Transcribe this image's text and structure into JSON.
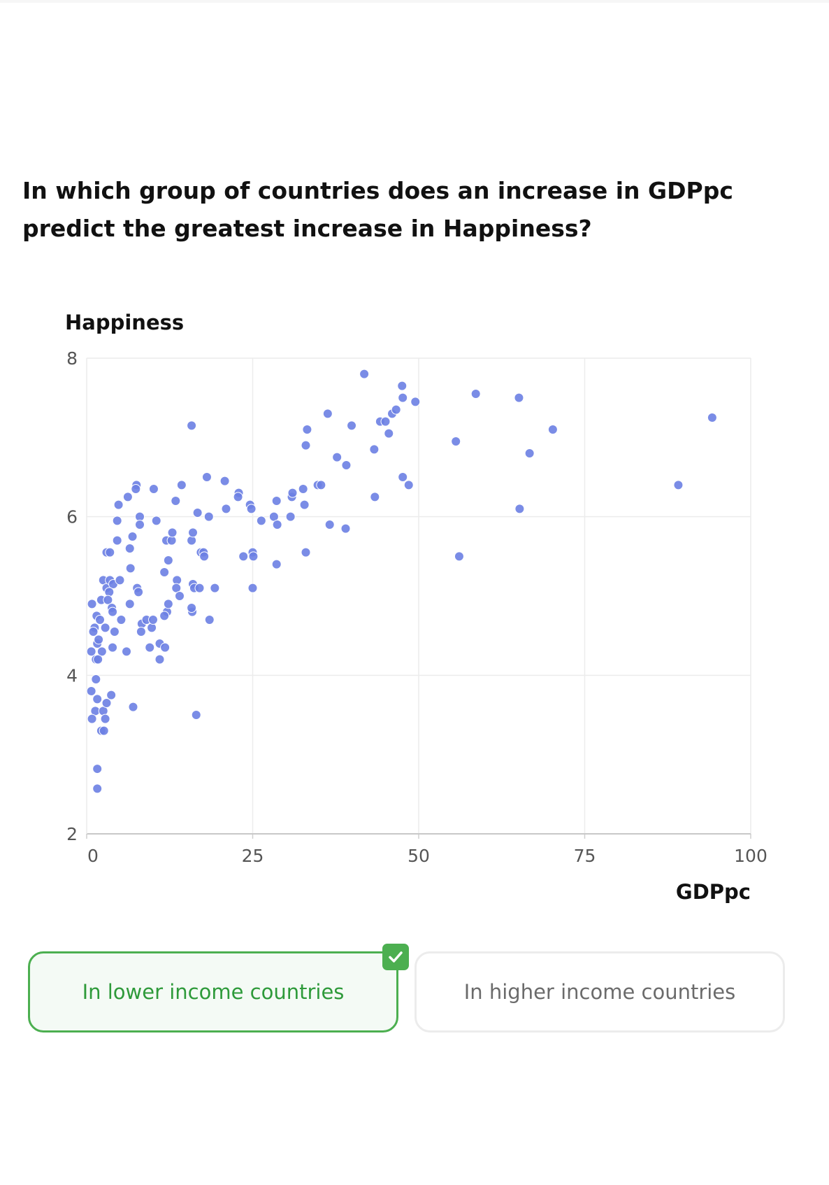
{
  "question": "In which group of countries does an increase in GDPpc predict the greatest increase in Happiness?",
  "options": [
    {
      "label": "In lower income countries",
      "state": "correct"
    },
    {
      "label": "In higher income countries",
      "state": "unselected"
    }
  ],
  "colors": {
    "points": "#6b7fe3",
    "correct": "#4caf50",
    "grid": "#ececec"
  },
  "icons": {
    "correct_badge": "checkmark-icon"
  },
  "chart_data": {
    "type": "scatter",
    "xlabel": "GDPpc",
    "ylabel": "Happiness",
    "xlim": [
      0,
      100
    ],
    "ylim": [
      2,
      8
    ],
    "xticks": [
      "0",
      "25",
      "50",
      "75",
      "100"
    ],
    "yticks": [
      "2",
      "4",
      "6",
      "8"
    ],
    "grid": true,
    "points": [
      [
        0.8,
        4.9
      ],
      [
        1.2,
        4.6
      ],
      [
        1.5,
        4.75
      ],
      [
        1.0,
        4.55
      ],
      [
        0.7,
        4.3
      ],
      [
        1.6,
        4.4
      ],
      [
        2.0,
        4.7
      ],
      [
        2.2,
        4.95
      ],
      [
        2.5,
        5.2
      ],
      [
        3.0,
        5.1
      ],
      [
        3.5,
        5.2
      ],
      [
        4.0,
        5.15
      ],
      [
        3.4,
        5.05
      ],
      [
        3.2,
        4.95
      ],
      [
        3.8,
        4.85
      ],
      [
        3.9,
        4.8
      ],
      [
        2.8,
        4.6
      ],
      [
        4.2,
        4.55
      ],
      [
        5.2,
        4.7
      ],
      [
        1.8,
        4.45
      ],
      [
        2.3,
        4.3
      ],
      [
        1.4,
        4.2
      ],
      [
        1.7,
        4.2
      ],
      [
        3.9,
        4.35
      ],
      [
        6.0,
        4.3
      ],
      [
        1.4,
        3.95
      ],
      [
        1.6,
        3.7
      ],
      [
        0.7,
        3.8
      ],
      [
        1.3,
        3.55
      ],
      [
        0.8,
        3.45
      ],
      [
        2.5,
        3.55
      ],
      [
        3.0,
        3.65
      ],
      [
        3.7,
        3.75
      ],
      [
        2.8,
        3.45
      ],
      [
        2.2,
        3.3
      ],
      [
        2.6,
        3.3
      ],
      [
        1.6,
        2.82
      ],
      [
        1.6,
        2.57
      ],
      [
        3.0,
        5.55
      ],
      [
        3.5,
        5.55
      ],
      [
        4.6,
        5.7
      ],
      [
        5.0,
        5.2
      ],
      [
        4.6,
        5.95
      ],
      [
        4.8,
        6.15
      ],
      [
        6.2,
        6.25
      ],
      [
        7.5,
        6.4
      ],
      [
        7.4,
        6.35
      ],
      [
        6.5,
        5.6
      ],
      [
        6.9,
        5.75
      ],
      [
        8.0,
        6.0
      ],
      [
        8.0,
        5.9
      ],
      [
        6.6,
        5.35
      ],
      [
        7.6,
        5.1
      ],
      [
        7.8,
        5.05
      ],
      [
        6.5,
        4.9
      ],
      [
        8.3,
        4.65
      ],
      [
        8.2,
        4.55
      ],
      [
        9.0,
        4.7
      ],
      [
        9.8,
        4.6
      ],
      [
        10.0,
        4.7
      ],
      [
        9.5,
        4.35
      ],
      [
        11.0,
        4.4
      ],
      [
        11.0,
        4.2
      ],
      [
        11.8,
        4.35
      ],
      [
        7.0,
        3.6
      ],
      [
        10.1,
        6.35
      ],
      [
        10.5,
        5.95
      ],
      [
        11.7,
        5.3
      ],
      [
        12.0,
        5.7
      ],
      [
        12.3,
        5.45
      ],
      [
        12.8,
        5.7
      ],
      [
        12.9,
        5.8
      ],
      [
        13.4,
        6.2
      ],
      [
        13.6,
        5.2
      ],
      [
        13.5,
        5.1
      ],
      [
        14.0,
        5.0
      ],
      [
        14.3,
        6.4
      ],
      [
        12.1,
        4.8
      ],
      [
        12.3,
        4.9
      ],
      [
        11.7,
        4.75
      ],
      [
        15.8,
        7.15
      ],
      [
        15.8,
        5.7
      ],
      [
        16.0,
        5.8
      ],
      [
        16.0,
        5.15
      ],
      [
        16.2,
        5.1
      ],
      [
        16.7,
        6.05
      ],
      [
        17.0,
        5.1
      ],
      [
        17.2,
        5.55
      ],
      [
        17.6,
        5.55
      ],
      [
        17.7,
        5.5
      ],
      [
        18.1,
        6.5
      ],
      [
        18.4,
        6.0
      ],
      [
        18.5,
        4.7
      ],
      [
        15.9,
        4.8
      ],
      [
        15.8,
        4.85
      ],
      [
        16.5,
        3.5
      ],
      [
        19.3,
        5.1
      ],
      [
        20.8,
        6.45
      ],
      [
        21.0,
        6.1
      ],
      [
        22.9,
        6.3
      ],
      [
        22.8,
        6.25
      ],
      [
        23.6,
        5.5
      ],
      [
        24.6,
        6.15
      ],
      [
        24.8,
        6.1
      ],
      [
        25.0,
        5.55
      ],
      [
        25.1,
        5.5
      ],
      [
        25.0,
        5.1
      ],
      [
        26.3,
        5.95
      ],
      [
        28.2,
        6.0
      ],
      [
        28.6,
        6.2
      ],
      [
        28.7,
        5.9
      ],
      [
        28.6,
        5.4
      ],
      [
        30.7,
        6.0
      ],
      [
        30.9,
        6.25
      ],
      [
        31.0,
        6.3
      ],
      [
        32.6,
        6.35
      ],
      [
        32.8,
        6.15
      ],
      [
        33.0,
        6.9
      ],
      [
        33.2,
        7.1
      ],
      [
        33.0,
        5.55
      ],
      [
        34.8,
        6.4
      ],
      [
        35.3,
        6.4
      ],
      [
        36.3,
        7.3
      ],
      [
        36.6,
        5.9
      ],
      [
        37.7,
        6.75
      ],
      [
        39.1,
        6.65
      ],
      [
        39.0,
        5.85
      ],
      [
        39.9,
        7.15
      ],
      [
        41.8,
        7.8
      ],
      [
        43.3,
        6.85
      ],
      [
        43.4,
        6.25
      ],
      [
        44.2,
        7.2
      ],
      [
        45.0,
        7.2
      ],
      [
        45.5,
        7.05
      ],
      [
        46.0,
        7.3
      ],
      [
        46.6,
        7.35
      ],
      [
        47.5,
        7.65
      ],
      [
        47.6,
        7.5
      ],
      [
        47.6,
        6.5
      ],
      [
        48.5,
        6.4
      ],
      [
        49.5,
        7.45
      ],
      [
        55.6,
        6.95
      ],
      [
        56.1,
        5.5
      ],
      [
        58.6,
        7.55
      ],
      [
        65.1,
        7.5
      ],
      [
        65.2,
        6.1
      ],
      [
        66.7,
        6.8
      ],
      [
        70.2,
        7.1
      ],
      [
        89.1,
        6.4
      ],
      [
        94.2,
        7.25
      ]
    ]
  }
}
